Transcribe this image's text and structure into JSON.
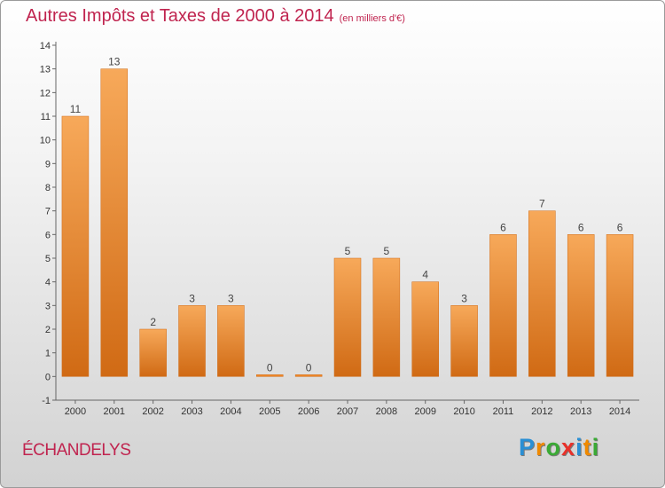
{
  "header": {
    "title": "Autres Impôts et Taxes de 2000 à 2014",
    "unit": "(en milliers d'€)"
  },
  "footer": {
    "place": "ÉCHANDELYS",
    "logo_letters": [
      "P",
      "r",
      "o",
      "x",
      "i",
      "t",
      "i"
    ],
    "logo_colors": [
      "#2a8fd4",
      "#f08a00",
      "#3aaa35",
      "#e8312a",
      "#2a8fd4",
      "#f08a00",
      "#3aaa35"
    ]
  },
  "chart_data": {
    "type": "bar",
    "categories": [
      "2000",
      "2001",
      "2002",
      "2003",
      "2004",
      "2005",
      "2006",
      "2007",
      "2008",
      "2009",
      "2010",
      "2011",
      "2012",
      "2013",
      "2014"
    ],
    "values": [
      11,
      13,
      2,
      3,
      3,
      0,
      0,
      5,
      5,
      4,
      3,
      6,
      7,
      6,
      6
    ],
    "data_labels": [
      "11",
      "13",
      "2",
      "3",
      "3",
      "0",
      "0",
      "5",
      "5",
      "4",
      "3",
      "6",
      "7",
      "6",
      "6"
    ],
    "y_ticks": [
      "-1",
      "0",
      "1",
      "2",
      "3",
      "4",
      "5",
      "6",
      "7",
      "8",
      "9",
      "10",
      "11",
      "12",
      "13",
      "14"
    ],
    "ylim": [
      -1,
      14
    ],
    "grid": false,
    "bar_color": "#f0882a",
    "bar_color_light": "#f7a95a",
    "bar_color_dark": "#d06a14"
  }
}
